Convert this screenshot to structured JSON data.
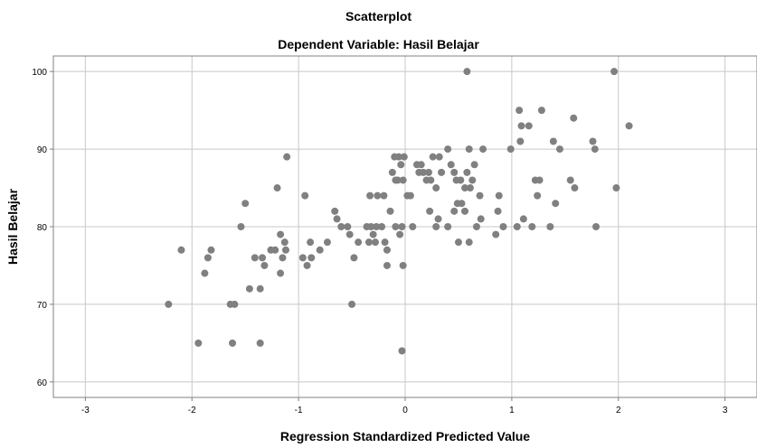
{
  "chart_data": {
    "type": "scatter",
    "title": "Scatterplot",
    "subtitle": "Dependent Variable: Hasil Belajar",
    "xlabel": "Regression Standardized Predicted Value",
    "ylabel": "Hasil Belajar",
    "xlim": [
      -3.3,
      3.3
    ],
    "ylim": [
      58,
      102
    ],
    "xticks": [
      -3,
      -2,
      -1,
      0,
      1,
      2,
      3
    ],
    "xtick_labels": [
      "-3",
      "-2",
      "-1",
      "0",
      "1",
      "2",
      "3"
    ],
    "yticks": [
      60,
      70,
      80,
      90,
      100
    ],
    "ytick_labels": [
      "60",
      "70",
      "80",
      "90",
      "100"
    ],
    "grid": true,
    "marker_color": "#808080",
    "grid_color": "#c8c8c8",
    "points": [
      [
        -2.22,
        70
      ],
      [
        -2.1,
        77
      ],
      [
        -1.94,
        65
      ],
      [
        -1.88,
        74
      ],
      [
        -1.85,
        76
      ],
      [
        -1.82,
        77
      ],
      [
        -1.64,
        70
      ],
      [
        -1.6,
        70
      ],
      [
        -1.62,
        65
      ],
      [
        -1.54,
        80
      ],
      [
        -1.5,
        83
      ],
      [
        -1.46,
        72
      ],
      [
        -1.41,
        76
      ],
      [
        -1.36,
        72
      ],
      [
        -1.36,
        65
      ],
      [
        -1.34,
        76
      ],
      [
        -1.32,
        75
      ],
      [
        -1.26,
        77
      ],
      [
        -1.22,
        77
      ],
      [
        -1.2,
        85
      ],
      [
        -1.17,
        79
      ],
      [
        -1.17,
        74
      ],
      [
        -1.15,
        76
      ],
      [
        -1.13,
        78
      ],
      [
        -1.12,
        77
      ],
      [
        -1.11,
        89
      ],
      [
        -0.96,
        76
      ],
      [
        -0.94,
        84
      ],
      [
        -0.92,
        75
      ],
      [
        -0.88,
        76
      ],
      [
        -0.89,
        78
      ],
      [
        -0.8,
        77
      ],
      [
        -0.73,
        78
      ],
      [
        -0.66,
        82
      ],
      [
        -0.64,
        81
      ],
      [
        -0.6,
        80
      ],
      [
        -0.54,
        80
      ],
      [
        -0.52,
        79
      ],
      [
        -0.5,
        70
      ],
      [
        -0.48,
        76
      ],
      [
        -0.44,
        78
      ],
      [
        -0.36,
        80
      ],
      [
        -0.33,
        84
      ],
      [
        -0.32,
        80
      ],
      [
        -0.34,
        78
      ],
      [
        -0.3,
        79
      ],
      [
        -0.28,
        78
      ],
      [
        -0.27,
        80
      ],
      [
        -0.26,
        84
      ],
      [
        -0.22,
        80
      ],
      [
        -0.2,
        84
      ],
      [
        -0.19,
        78
      ],
      [
        -0.17,
        77
      ],
      [
        -0.17,
        75
      ],
      [
        -0.14,
        82
      ],
      [
        -0.12,
        87
      ],
      [
        -0.1,
        89
      ],
      [
        -0.09,
        86
      ],
      [
        -0.09,
        80
      ],
      [
        -0.07,
        86
      ],
      [
        -0.06,
        89
      ],
      [
        -0.05,
        79
      ],
      [
        -0.04,
        88
      ],
      [
        -0.03,
        64
      ],
      [
        -0.02,
        86
      ],
      [
        -0.03,
        80
      ],
      [
        -0.01,
        89
      ],
      [
        -0.02,
        75
      ],
      [
        0.02,
        84
      ],
      [
        0.05,
        84
      ],
      [
        0.07,
        80
      ],
      [
        0.11,
        88
      ],
      [
        0.13,
        87
      ],
      [
        0.15,
        88
      ],
      [
        0.17,
        87
      ],
      [
        0.2,
        86
      ],
      [
        0.22,
        87
      ],
      [
        0.23,
        82
      ],
      [
        0.24,
        86
      ],
      [
        0.26,
        89
      ],
      [
        0.29,
        85
      ],
      [
        0.31,
        81
      ],
      [
        0.32,
        89
      ],
      [
        0.34,
        87
      ],
      [
        0.29,
        80
      ],
      [
        0.4,
        80
      ],
      [
        0.4,
        90
      ],
      [
        0.43,
        88
      ],
      [
        0.46,
        82
      ],
      [
        0.46,
        87
      ],
      [
        0.48,
        86
      ],
      [
        0.5,
        78
      ],
      [
        0.49,
        83
      ],
      [
        0.52,
        86
      ],
      [
        0.53,
        83
      ],
      [
        0.56,
        85
      ],
      [
        0.56,
        82
      ],
      [
        0.58,
        87
      ],
      [
        0.6,
        90
      ],
      [
        0.6,
        78
      ],
      [
        0.61,
        85
      ],
      [
        0.63,
        86
      ],
      [
        0.65,
        88
      ],
      [
        0.67,
        80
      ],
      [
        0.7,
        84
      ],
      [
        0.71,
        81
      ],
      [
        0.73,
        90
      ],
      [
        0.58,
        100
      ],
      [
        0.85,
        79
      ],
      [
        0.87,
        82
      ],
      [
        0.88,
        84
      ],
      [
        0.92,
        80
      ],
      [
        0.99,
        90
      ],
      [
        1.05,
        80
      ],
      [
        1.07,
        95
      ],
      [
        1.08,
        91
      ],
      [
        1.09,
        93
      ],
      [
        1.11,
        81
      ],
      [
        1.16,
        93
      ],
      [
        1.19,
        80
      ],
      [
        1.22,
        86
      ],
      [
        1.24,
        84
      ],
      [
        1.26,
        86
      ],
      [
        1.28,
        95
      ],
      [
        1.36,
        80
      ],
      [
        1.39,
        91
      ],
      [
        1.41,
        83
      ],
      [
        1.45,
        90
      ],
      [
        1.55,
        86
      ],
      [
        1.58,
        94
      ],
      [
        1.59,
        85
      ],
      [
        1.76,
        91
      ],
      [
        1.78,
        90
      ],
      [
        1.79,
        80
      ],
      [
        1.96,
        100
      ],
      [
        1.98,
        85
      ],
      [
        2.1,
        93
      ]
    ]
  }
}
